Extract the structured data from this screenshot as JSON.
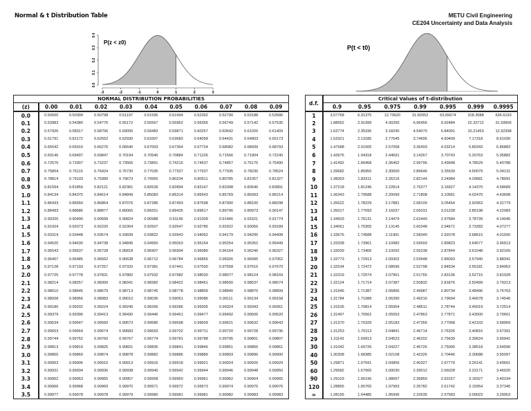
{
  "header": {
    "title": "Normal & t Distribution Table",
    "institution_line1": "METU Civil Engineering",
    "institution_line2": "CE204 Uncertainty and Data Analysis"
  },
  "normal_plot": {
    "label": "P(z < z0)",
    "x_ticks": [
      "-3",
      "-2",
      "-1",
      "0",
      "1",
      "2",
      "3"
    ],
    "y_ticks": [
      "0.0",
      "0.1",
      "0.2",
      "0.3",
      "0.4"
    ],
    "shaded_up_to": 1
  },
  "t_plot": {
    "label": "P(t < t0)"
  },
  "normal_table": {
    "caption": "NORMAL DISTRIBUTION PROBABILITIES",
    "row_header": "(z)",
    "columns": [
      "0.00",
      "0.01",
      "0.02",
      "0.03",
      "0.04",
      "0.05",
      "0.06",
      "0.07",
      "0.08",
      "0.09"
    ],
    "rows": [
      {
        "z": "0.0",
        "v": [
          "0.50000",
          "0.50399",
          "0.50798",
          "0.51197",
          "0.51595",
          "0.51994",
          "0.52392",
          "0.52790",
          "0.53188",
          "0.53586"
        ]
      },
      {
        "z": "0.1",
        "v": [
          "0.53983",
          "0.54380",
          "0.54776",
          "0.55172",
          "0.55567",
          "0.55962",
          "0.56356",
          "0.56749",
          "0.57142",
          "0.57535"
        ]
      },
      {
        "z": "0.2",
        "v": [
          "0.57926",
          "0.58317",
          "0.58706",
          "0.59095",
          "0.59483",
          "0.59871",
          "0.60257",
          "0.60642",
          "0.61026",
          "0.61409"
        ]
      },
      {
        "z": "0.3",
        "v": [
          "0.61791",
          "0.62172",
          "0.62552",
          "0.62930",
          "0.63307",
          "0.63683",
          "0.64058",
          "0.64431",
          "0.64803",
          "0.65173"
        ]
      },
      {
        "z": "0.4",
        "v": [
          "0.65542",
          "0.65910",
          "0.66276",
          "0.66640",
          "0.67003",
          "0.67364",
          "0.67724",
          "0.68082",
          "0.68439",
          "0.68793"
        ]
      },
      {
        "z": "0.5",
        "v": [
          "0.69146",
          "0.69497",
          "0.69847",
          "0.70194",
          "0.70540",
          "0.70884",
          "0.71226",
          "0.71566",
          "0.71904",
          "0.72240"
        ]
      },
      {
        "z": "0.6",
        "v": [
          "0.72575",
          "0.72907",
          "0.73237",
          "0.73565",
          "0.73891",
          "0.74215",
          "0.74537",
          "0.74857",
          "0.75175",
          "0.75490"
        ]
      },
      {
        "z": "0.7",
        "v": [
          "0.75804",
          "0.76115",
          "0.76424",
          "0.76730",
          "0.77035",
          "0.77337",
          "0.77637",
          "0.77935",
          "0.78230",
          "0.78524"
        ]
      },
      {
        "z": "0.8",
        "v": [
          "0.78814",
          "0.79103",
          "0.79389",
          "0.79673",
          "0.79955",
          "0.80234",
          "0.80511",
          "0.80785",
          "0.81057",
          "0.81327"
        ]
      },
      {
        "z": "0.9",
        "v": [
          "0.81594",
          "0.81859",
          "0.82121",
          "0.82381",
          "0.82639",
          "0.82894",
          "0.83147",
          "0.83398",
          "0.83646",
          "0.83891"
        ]
      },
      {
        "z": "1.0",
        "v": [
          "0.84134",
          "0.84375",
          "0.84614",
          "0.84849",
          "0.85083",
          "0.85314",
          "0.85543",
          "0.85769",
          "0.85993",
          "0.86214"
        ]
      },
      {
        "z": "1.1",
        "v": [
          "0.86433",
          "0.86650",
          "0.86864",
          "0.87076",
          "0.87286",
          "0.87493",
          "0.87698",
          "0.87900",
          "0.88100",
          "0.88298"
        ]
      },
      {
        "z": "1.2",
        "v": [
          "0.88493",
          "0.88686",
          "0.88877",
          "0.89065",
          "0.89251",
          "0.89435",
          "0.89617",
          "0.89796",
          "0.89973",
          "0.90147"
        ]
      },
      {
        "z": "1.3",
        "v": [
          "0.90320",
          "0.90490",
          "0.90658",
          "0.90824",
          "0.90988",
          "0.91149",
          "0.91309",
          "0.91466",
          "0.91621",
          "0.91774"
        ]
      },
      {
        "z": "1.4",
        "v": [
          "0.91924",
          "0.92073",
          "0.92220",
          "0.92364",
          "0.92507",
          "0.92647",
          "0.92785",
          "0.92922",
          "0.93056",
          "0.93189"
        ]
      },
      {
        "z": "1.5",
        "v": [
          "0.93319",
          "0.93448",
          "0.93574",
          "0.93699",
          "0.93822",
          "0.93943",
          "0.94062",
          "0.94179",
          "0.94295",
          "0.94408"
        ]
      },
      {
        "z": "1.6",
        "v": [
          "0.94520",
          "0.94630",
          "0.94738",
          "0.94845",
          "0.94950",
          "0.95053",
          "0.95154",
          "0.95254",
          "0.95352",
          "0.95449"
        ]
      },
      {
        "z": "1.7",
        "v": [
          "0.95543",
          "0.95637",
          "0.95728",
          "0.95818",
          "0.95907",
          "0.95994",
          "0.96080",
          "0.96164",
          "0.96246",
          "0.96327"
        ]
      },
      {
        "z": "1.8",
        "v": [
          "0.96407",
          "0.96485",
          "0.96562",
          "0.96638",
          "0.96712",
          "0.96784",
          "0.96856",
          "0.96926",
          "0.96995",
          "0.97062"
        ]
      },
      {
        "z": "1.9",
        "v": [
          "0.97128",
          "0.97193",
          "0.97257",
          "0.97320",
          "0.97381",
          "0.97441",
          "0.97500",
          "0.97558",
          "0.97615",
          "0.97670"
        ]
      },
      {
        "z": "2.0",
        "v": [
          "0.97725",
          "0.97778",
          "0.97831",
          "0.97882",
          "0.97932",
          "0.97982",
          "0.98030",
          "0.98077",
          "0.98124",
          "0.98169"
        ]
      },
      {
        "z": "2.1",
        "v": [
          "0.98214",
          "0.98257",
          "0.98300",
          "0.98341",
          "0.98382",
          "0.98422",
          "0.98461",
          "0.98500",
          "0.98537",
          "0.98574"
        ]
      },
      {
        "z": "2.2",
        "v": [
          "0.98610",
          "0.98645",
          "0.98679",
          "0.98713",
          "0.98745",
          "0.98778",
          "0.98809",
          "0.98840",
          "0.98870",
          "0.98899"
        ]
      },
      {
        "z": "2.3",
        "v": [
          "0.98928",
          "0.98956",
          "0.98983",
          "0.99010",
          "0.99036",
          "0.99061",
          "0.99086",
          "0.99111",
          "0.99134",
          "0.99158"
        ]
      },
      {
        "z": "2.4",
        "v": [
          "0.99180",
          "0.99202",
          "0.99224",
          "0.99245",
          "0.99266",
          "0.99286",
          "0.99305",
          "0.99324",
          "0.99343",
          "0.99361"
        ]
      },
      {
        "z": "2.5",
        "v": [
          "0.99379",
          "0.99396",
          "0.99413",
          "0.99430",
          "0.99446",
          "0.99461",
          "0.99477",
          "0.99492",
          "0.99506",
          "0.99520"
        ]
      },
      {
        "z": "2.6",
        "v": [
          "0.99534",
          "0.99547",
          "0.99560",
          "0.99573",
          "0.99585",
          "0.99598",
          "0.99609",
          "0.99621",
          "0.99632",
          "0.99643"
        ]
      },
      {
        "z": "2.7",
        "v": [
          "0.99653",
          "0.99664",
          "0.99674",
          "0.99683",
          "0.99693",
          "0.99702",
          "0.99711",
          "0.99720",
          "0.99728",
          "0.99736"
        ]
      },
      {
        "z": "2.8",
        "v": [
          "0.99744",
          "0.99752",
          "0.99760",
          "0.99767",
          "0.99774",
          "0.99781",
          "0.99788",
          "0.99795",
          "0.99801",
          "0.99807"
        ]
      },
      {
        "z": "2.9",
        "v": [
          "0.99813",
          "0.99819",
          "0.99825",
          "0.99831",
          "0.99836",
          "0.99841",
          "0.99846",
          "0.99851",
          "0.99856",
          "0.99861"
        ]
      },
      {
        "z": "3.0",
        "v": [
          "0.99865",
          "0.99869",
          "0.99874",
          "0.99878",
          "0.99882",
          "0.99886",
          "0.99889",
          "0.99893",
          "0.99896",
          "0.99900"
        ]
      },
      {
        "z": "3.1",
        "v": [
          "0.99903",
          "0.99906",
          "0.99910",
          "0.99913",
          "0.99916",
          "0.99918",
          "0.99921",
          "0.99924",
          "0.99926",
          "0.99929"
        ]
      },
      {
        "z": "3.2",
        "v": [
          "0.99931",
          "0.99934",
          "0.99936",
          "0.99938",
          "0.99940",
          "0.99942",
          "0.99944",
          "0.99946",
          "0.99948",
          "0.99950"
        ]
      },
      {
        "z": "3.3",
        "v": [
          "0.99952",
          "0.99953",
          "0.99955",
          "0.99957",
          "0.99958",
          "0.99960",
          "0.99961",
          "0.99962",
          "0.99964",
          "0.99965"
        ]
      },
      {
        "z": "3.4",
        "v": [
          "0.99966",
          "0.99968",
          "0.99969",
          "0.99970",
          "0.99971",
          "0.99972",
          "0.99973",
          "0.99974",
          "0.99975",
          "0.99976"
        ]
      },
      {
        "z": "3.5",
        "v": [
          "0.99977",
          "0.99978",
          "0.99978",
          "0.99979",
          "0.99980",
          "0.99981",
          "0.99981",
          "0.99982",
          "0.99983",
          "0.99983"
        ]
      }
    ]
  },
  "t_table": {
    "caption": "Critical Values of t-distribution",
    "row_header": "d.f.",
    "columns": [
      "0.9",
      "0.95",
      "0.975",
      "0.99",
      "0.995",
      "0.999",
      "0.9995"
    ],
    "rows": [
      {
        "df": "1",
        "v": [
          "3.07768",
          "6.31375",
          "12.70620",
          "31.82052",
          "63.65674",
          "318.3088",
          "636.6193"
        ]
      },
      {
        "df": "2",
        "v": [
          "1.88562",
          "2.91999",
          "4.30265",
          "6.96456",
          "9.92484",
          "22.32712",
          "31.59905"
        ]
      },
      {
        "df": "3",
        "v": [
          "1.63774",
          "2.35336",
          "3.18245",
          "4.54070",
          "5.84091",
          "10.21453",
          "12.92398"
        ]
      },
      {
        "df": "4",
        "v": [
          "1.53321",
          "2.13185",
          "2.77645",
          "3.74695",
          "4.60409",
          "7.17318",
          "8.61030"
        ]
      },
      {
        "df": "5",
        "v": [
          "1.47588",
          "2.01505",
          "2.57058",
          "3.36493",
          "4.03214",
          "5.89343",
          "6.86883"
        ]
      },
      {
        "df": "6",
        "v": [
          "1.43976",
          "1.94318",
          "2.44691",
          "3.14267",
          "3.70743",
          "5.20763",
          "5.95882"
        ]
      },
      {
        "df": "7",
        "v": [
          "1.41492",
          "1.89458",
          "2.36462",
          "2.99795",
          "3.49948",
          "4.78529",
          "5.40788"
        ]
      },
      {
        "df": "8",
        "v": [
          "1.39682",
          "1.85955",
          "2.30600",
          "2.89646",
          "3.35539",
          "4.50079",
          "5.04131"
        ]
      },
      {
        "df": "9",
        "v": [
          "1.38303",
          "1.83311",
          "2.26216",
          "2.82144",
          "3.24984",
          "4.29681",
          "4.78091"
        ]
      },
      {
        "df": "10",
        "v": [
          "1.37218",
          "1.81246",
          "2.22814",
          "2.76377",
          "3.16927",
          "4.14370",
          "4.58689"
        ]
      },
      {
        "df": "11",
        "v": [
          "1.36343",
          "1.79588",
          "2.20099",
          "2.71808",
          "3.10581",
          "4.02470",
          "4.43698"
        ]
      },
      {
        "df": "12",
        "v": [
          "1.35622",
          "1.78229",
          "2.17881",
          "2.68100",
          "3.05454",
          "3.92963",
          "4.31779"
        ]
      },
      {
        "df": "13",
        "v": [
          "1.35017",
          "1.77093",
          "2.16037",
          "2.65031",
          "3.01228",
          "3.85198",
          "4.22083"
        ]
      },
      {
        "df": "14",
        "v": [
          "1.34503",
          "1.76131",
          "2.14479",
          "2.62449",
          "2.97684",
          "3.78739",
          "4.14045"
        ]
      },
      {
        "df": "15",
        "v": [
          "1.34061",
          "1.75305",
          "2.13145",
          "2.60248",
          "2.94671",
          "3.73283",
          "4.07277"
        ]
      },
      {
        "df": "16",
        "v": [
          "1.33676",
          "1.74588",
          "2.11991",
          "2.58349",
          "2.92078",
          "3.68615",
          "4.01500"
        ]
      },
      {
        "df": "17",
        "v": [
          "1.33338",
          "1.73961",
          "2.10982",
          "2.56693",
          "2.89823",
          "3.64577",
          "3.96513"
        ]
      },
      {
        "df": "18",
        "v": [
          "1.33039",
          "1.73406",
          "2.10092",
          "2.55238",
          "2.87844",
          "3.61048",
          "3.92165"
        ]
      },
      {
        "df": "19",
        "v": [
          "1.32773",
          "1.72913",
          "2.09302",
          "2.53948",
          "2.86093",
          "3.57940",
          "3.88341"
        ]
      },
      {
        "df": "20",
        "v": [
          "1.32534",
          "1.72472",
          "2.08596",
          "2.52798",
          "2.84534",
          "3.55181",
          "3.84952"
        ]
      },
      {
        "df": "21",
        "v": [
          "1.32319",
          "1.72074",
          "2.07961",
          "2.51765",
          "2.83136",
          "3.52715",
          "3.81928"
        ]
      },
      {
        "df": "22",
        "v": [
          "1.32124",
          "1.71714",
          "2.07387",
          "2.50832",
          "2.81876",
          "3.50499",
          "3.79213"
        ]
      },
      {
        "df": "23",
        "v": [
          "1.31946",
          "1.71387",
          "2.06866",
          "2.49987",
          "2.80734",
          "3.48496",
          "3.76763"
        ]
      },
      {
        "df": "24",
        "v": [
          "1.31784",
          "1.71088",
          "2.06390",
          "2.49216",
          "2.79694",
          "3.46678",
          "3.74540"
        ]
      },
      {
        "df": "25",
        "v": [
          "1.31635",
          "1.70814",
          "2.05954",
          "2.48511",
          "2.78744",
          "3.45019",
          "3.72514"
        ]
      },
      {
        "df": "26",
        "v": [
          "1.31497",
          "1.70562",
          "2.05553",
          "2.47863",
          "2.77871",
          "3.43500",
          "3.70661"
        ]
      },
      {
        "df": "27",
        "v": [
          "1.31370",
          "1.70329",
          "2.05183",
          "2.47266",
          "2.77068",
          "3.42103",
          "3.68959"
        ]
      },
      {
        "df": "28",
        "v": [
          "1.31253",
          "1.70113",
          "2.04841",
          "2.46714",
          "2.76326",
          "3.40816",
          "3.67391"
        ]
      },
      {
        "df": "29",
        "v": [
          "1.31143",
          "1.69913",
          "2.04523",
          "2.46202",
          "2.75639",
          "3.39624",
          "3.65941"
        ]
      },
      {
        "df": "30",
        "v": [
          "1.31042",
          "1.69726",
          "2.04227",
          "2.45726",
          "2.75000",
          "3.38518",
          "3.64596"
        ]
      },
      {
        "df": "40",
        "v": [
          "1.30308",
          "1.68385",
          "2.02108",
          "2.42326",
          "2.70446",
          "3.30688",
          "3.55097"
        ]
      },
      {
        "df": "50",
        "v": [
          "1.29871",
          "1.67591",
          "2.00856",
          "2.40327",
          "2.67779",
          "3.26141",
          "3.49601"
        ]
      },
      {
        "df": "60",
        "v": [
          "1.29582",
          "1.67065",
          "2.00030",
          "2.39012",
          "2.66028",
          "3.23171",
          "3.46020"
        ]
      },
      {
        "df": "90",
        "v": [
          "1.29103",
          "1.66196",
          "1.98667",
          "2.36850",
          "2.63157",
          "3.18327",
          "3.40194"
        ]
      },
      {
        "df": "120",
        "v": [
          "1.28865",
          "1.65765",
          "1.97993",
          "2.35782",
          "2.61742",
          "3.15954",
          "3.37345"
        ]
      },
      {
        "df": "∞",
        "v": [
          "1.28155",
          "1.64485",
          "1.95996",
          "2.32635",
          "2.57583",
          "3.09023",
          "3.29053"
        ]
      }
    ]
  }
}
